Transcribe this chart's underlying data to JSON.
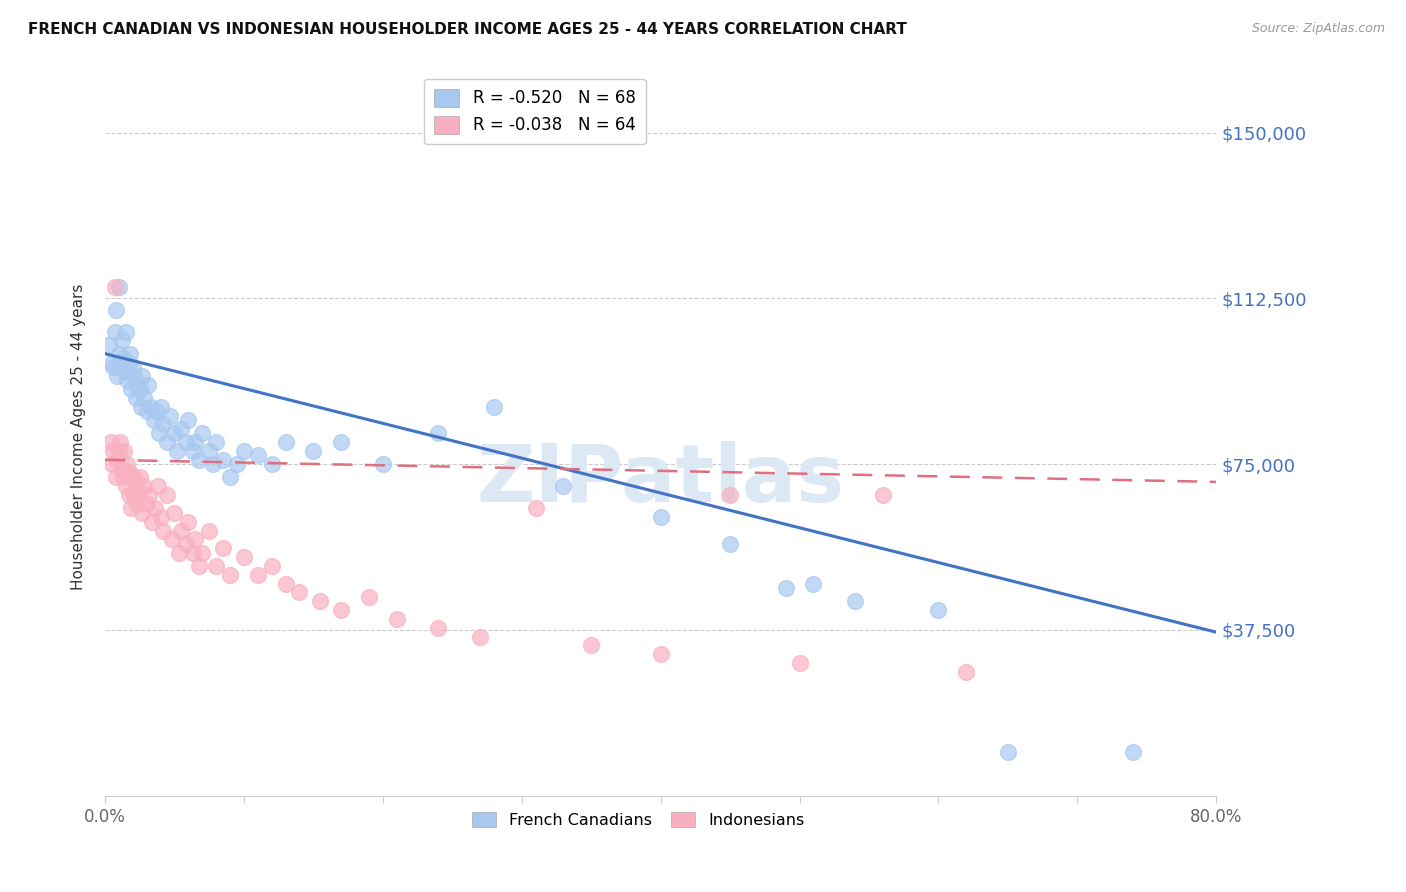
{
  "title": "FRENCH CANADIAN VS INDONESIAN HOUSEHOLDER INCOME AGES 25 - 44 YEARS CORRELATION CHART",
  "source": "Source: ZipAtlas.com",
  "ylabel": "Householder Income Ages 25 - 44 years",
  "ytick_labels": [
    "$150,000",
    "$112,500",
    "$75,000",
    "$37,500"
  ],
  "ytick_values": [
    150000,
    112500,
    75000,
    37500
  ],
  "ylim": [
    0,
    162500
  ],
  "xlim": [
    0.0,
    0.8
  ],
  "french_canadian_R": "-0.520",
  "french_canadian_N": "68",
  "indonesian_R": "-0.038",
  "indonesian_N": "64",
  "french_canadian_color": "#a8c8f0",
  "indonesian_color": "#f8b0c0",
  "french_canadian_line_color": "#4472c4",
  "indonesian_line_color": "#e8608080",
  "watermark": "ZIPatlas",
  "watermark_color": "#dce8f4",
  "fc_x": [
    0.003,
    0.005,
    0.006,
    0.007,
    0.008,
    0.009,
    0.01,
    0.01,
    0.011,
    0.012,
    0.013,
    0.014,
    0.015,
    0.016,
    0.017,
    0.018,
    0.019,
    0.02,
    0.021,
    0.022,
    0.023,
    0.025,
    0.026,
    0.027,
    0.028,
    0.03,
    0.031,
    0.033,
    0.035,
    0.037,
    0.039,
    0.04,
    0.042,
    0.045,
    0.047,
    0.05,
    0.052,
    0.055,
    0.058,
    0.06,
    0.063,
    0.065,
    0.068,
    0.07,
    0.075,
    0.078,
    0.08,
    0.085,
    0.09,
    0.095,
    0.1,
    0.11,
    0.12,
    0.13,
    0.15,
    0.17,
    0.2,
    0.24,
    0.28,
    0.33,
    0.4,
    0.45,
    0.49,
    0.51,
    0.54,
    0.6,
    0.65,
    0.74
  ],
  "fc_y": [
    102000,
    98000,
    97000,
    105000,
    110000,
    95000,
    100000,
    115000,
    97000,
    103000,
    99000,
    96000,
    105000,
    94000,
    98000,
    100000,
    92000,
    97000,
    95000,
    90000,
    93000,
    92000,
    88000,
    95000,
    90000,
    87000,
    93000,
    88000,
    85000,
    87000,
    82000,
    88000,
    84000,
    80000,
    86000,
    82000,
    78000,
    83000,
    80000,
    85000,
    78000,
    80000,
    76000,
    82000,
    78000,
    75000,
    80000,
    76000,
    72000,
    75000,
    78000,
    77000,
    75000,
    80000,
    78000,
    80000,
    75000,
    82000,
    88000,
    70000,
    63000,
    57000,
    47000,
    48000,
    44000,
    42000,
    10000,
    10000
  ],
  "in_x": [
    0.004,
    0.005,
    0.006,
    0.007,
    0.008,
    0.009,
    0.01,
    0.011,
    0.012,
    0.013,
    0.014,
    0.015,
    0.016,
    0.017,
    0.018,
    0.019,
    0.02,
    0.021,
    0.022,
    0.023,
    0.024,
    0.025,
    0.027,
    0.028,
    0.03,
    0.032,
    0.034,
    0.036,
    0.038,
    0.04,
    0.042,
    0.045,
    0.048,
    0.05,
    0.053,
    0.055,
    0.058,
    0.06,
    0.063,
    0.065,
    0.068,
    0.07,
    0.075,
    0.08,
    0.085,
    0.09,
    0.1,
    0.11,
    0.12,
    0.13,
    0.14,
    0.155,
    0.17,
    0.19,
    0.21,
    0.24,
    0.27,
    0.31,
    0.35,
    0.4,
    0.45,
    0.5,
    0.56,
    0.62
  ],
  "in_y": [
    80000,
    75000,
    78000,
    115000,
    72000,
    76000,
    78000,
    80000,
    74000,
    72000,
    78000,
    70000,
    75000,
    68000,
    73000,
    65000,
    72000,
    68000,
    70000,
    66000,
    68000,
    72000,
    64000,
    70000,
    66000,
    68000,
    62000,
    65000,
    70000,
    63000,
    60000,
    68000,
    58000,
    64000,
    55000,
    60000,
    57000,
    62000,
    55000,
    58000,
    52000,
    55000,
    60000,
    52000,
    56000,
    50000,
    54000,
    50000,
    52000,
    48000,
    46000,
    44000,
    42000,
    45000,
    40000,
    38000,
    36000,
    65000,
    34000,
    32000,
    68000,
    30000,
    68000,
    28000
  ]
}
